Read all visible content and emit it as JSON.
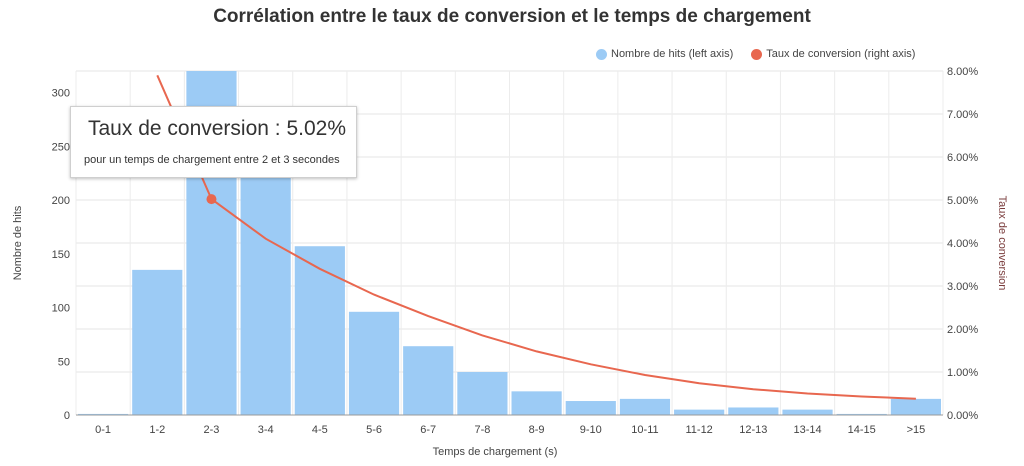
{
  "chart_data": {
    "type": "bar",
    "title": "Corrélation entre le taux de conversion et le temps de chargement",
    "xlabel": "Temps de chargement (s)",
    "ylabel": "Nombre de hits",
    "y2label": "Taux de conversion",
    "categories": [
      "0-1",
      "1-2",
      "2-3",
      "3-4",
      "4-5",
      "5-6",
      "6-7",
      "7-8",
      "8-9",
      "9-10",
      "10-11",
      "11-12",
      "12-13",
      "13-14",
      "14-15",
      ">15"
    ],
    "series": [
      {
        "name": "Nombre de hits (left axis)",
        "type": "bar",
        "axis": "left",
        "color": "#9ccbf5",
        "values": [
          1,
          135,
          320,
          225,
          157,
          96,
          64,
          40,
          22,
          13,
          15,
          5,
          7,
          5,
          1,
          15
        ]
      },
      {
        "name": "Taux de conversion (right axis)",
        "type": "line",
        "axis": "right",
        "color": "#e8674f",
        "values": [
          null,
          7.9,
          5.02,
          4.1,
          3.4,
          2.8,
          2.3,
          1.85,
          1.48,
          1.18,
          0.93,
          0.74,
          0.6,
          0.5,
          0.43,
          0.38
        ]
      }
    ],
    "ylim": [
      0,
      320
    ],
    "yticks": [
      0,
      50,
      100,
      150,
      200,
      250,
      300
    ],
    "y2lim": [
      0,
      8
    ],
    "y2ticks": [
      "0.00%",
      "1.00%",
      "2.00%",
      "3.00%",
      "4.00%",
      "5.00%",
      "6.00%",
      "7.00%",
      "8.00%"
    ],
    "grid": true,
    "legend_position": "top-right",
    "highlight_index": 2
  },
  "tooltip": {
    "title": "Taux de conversion : 5.02%",
    "subtitle": "pour un temps de chargement entre 2 et 3 secondes"
  }
}
